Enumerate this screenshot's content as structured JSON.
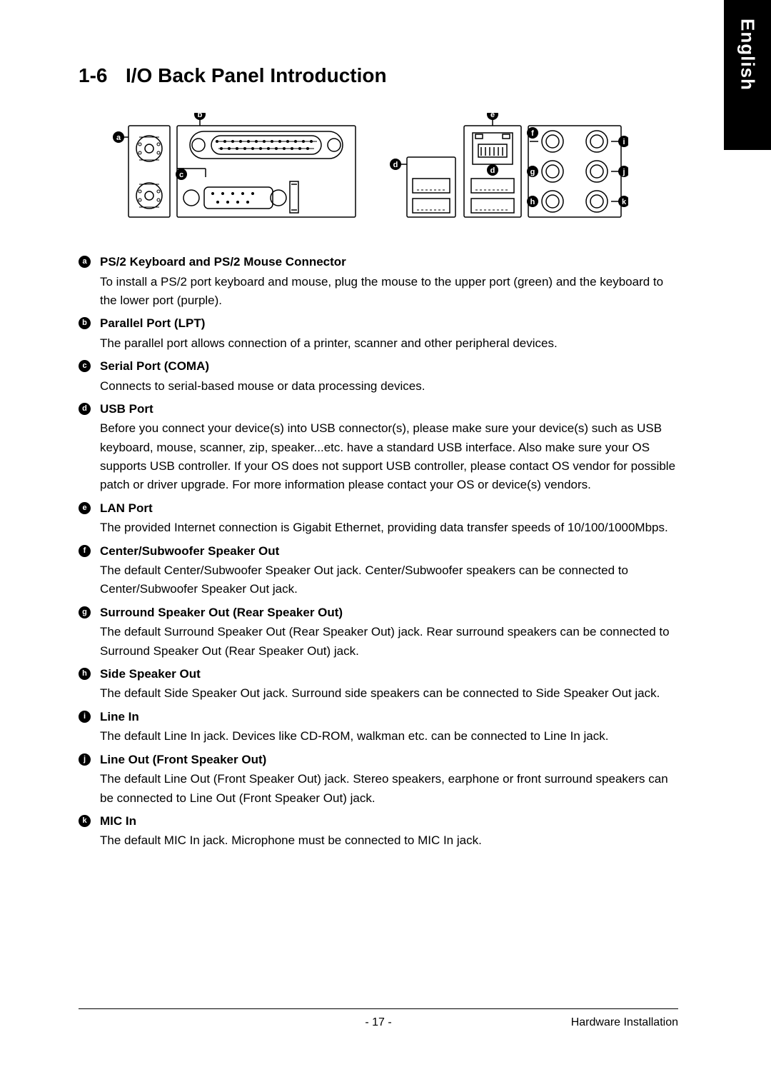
{
  "lang_tab": "English",
  "section": {
    "number": "1-6",
    "title": "I/O Back Panel Introduction"
  },
  "diagram": {
    "labels": [
      "a",
      "b",
      "c",
      "d",
      "e",
      "f",
      "g",
      "h",
      "i",
      "j",
      "k"
    ],
    "stroke": "#000000",
    "bg": "#ffffff"
  },
  "items": [
    {
      "marker": "a",
      "title": "PS/2 Keyboard and PS/2 Mouse Connector",
      "desc": "To install a PS/2 port keyboard and mouse, plug the mouse to the upper port (green) and the keyboard to the lower port (purple)."
    },
    {
      "marker": "b",
      "title": "Parallel Port (LPT)",
      "desc": "The parallel port allows connection of a printer, scanner and other peripheral devices."
    },
    {
      "marker": "c",
      "title": "Serial Port (COMA)",
      "desc": "Connects to serial-based mouse or data processing devices."
    },
    {
      "marker": "d",
      "title": "USB Port",
      "desc": "Before you connect your device(s) into USB connector(s), please make sure your device(s) such as USB keyboard, mouse, scanner, zip, speaker...etc. have a standard USB interface. Also make sure your OS supports USB controller. If your OS does not support USB controller, please contact OS vendor for possible patch or driver upgrade. For more information please contact your OS or device(s) vendors."
    },
    {
      "marker": "e",
      "title": "LAN Port",
      "desc": "The provided Internet connection is Gigabit Ethernet, providing data transfer speeds of 10/100/1000Mbps."
    },
    {
      "marker": "f",
      "title": "Center/Subwoofer Speaker Out",
      "desc": "The default Center/Subwoofer Speaker Out jack. Center/Subwoofer speakers can be connected to Center/Subwoofer Speaker Out jack."
    },
    {
      "marker": "g",
      "title": "Surround Speaker Out (Rear Speaker Out)",
      "desc": "The default Surround Speaker Out (Rear Speaker Out) jack. Rear surround speakers can be connected to Surround Speaker Out (Rear Speaker Out) jack."
    },
    {
      "marker": "h",
      "title": "Side Speaker Out",
      "desc": "The default Side Speaker Out jack. Surround side speakers can be connected to Side Speaker Out jack."
    },
    {
      "marker": "i",
      "title": "Line In",
      "desc": "The default Line In jack. Devices like CD-ROM, walkman etc. can be connected to Line In jack."
    },
    {
      "marker": "j",
      "title": "Line Out (Front Speaker Out)",
      "desc": "The default Line Out (Front Speaker Out) jack. Stereo speakers, earphone or front surround speakers can be connected to Line Out (Front Speaker Out) jack."
    },
    {
      "marker": "k",
      "title": "MIC In",
      "desc": "The default MIC In jack. Microphone must be connected to MIC In jack."
    }
  ],
  "footer": {
    "page": "- 17 -",
    "section": "Hardware Installation"
  }
}
